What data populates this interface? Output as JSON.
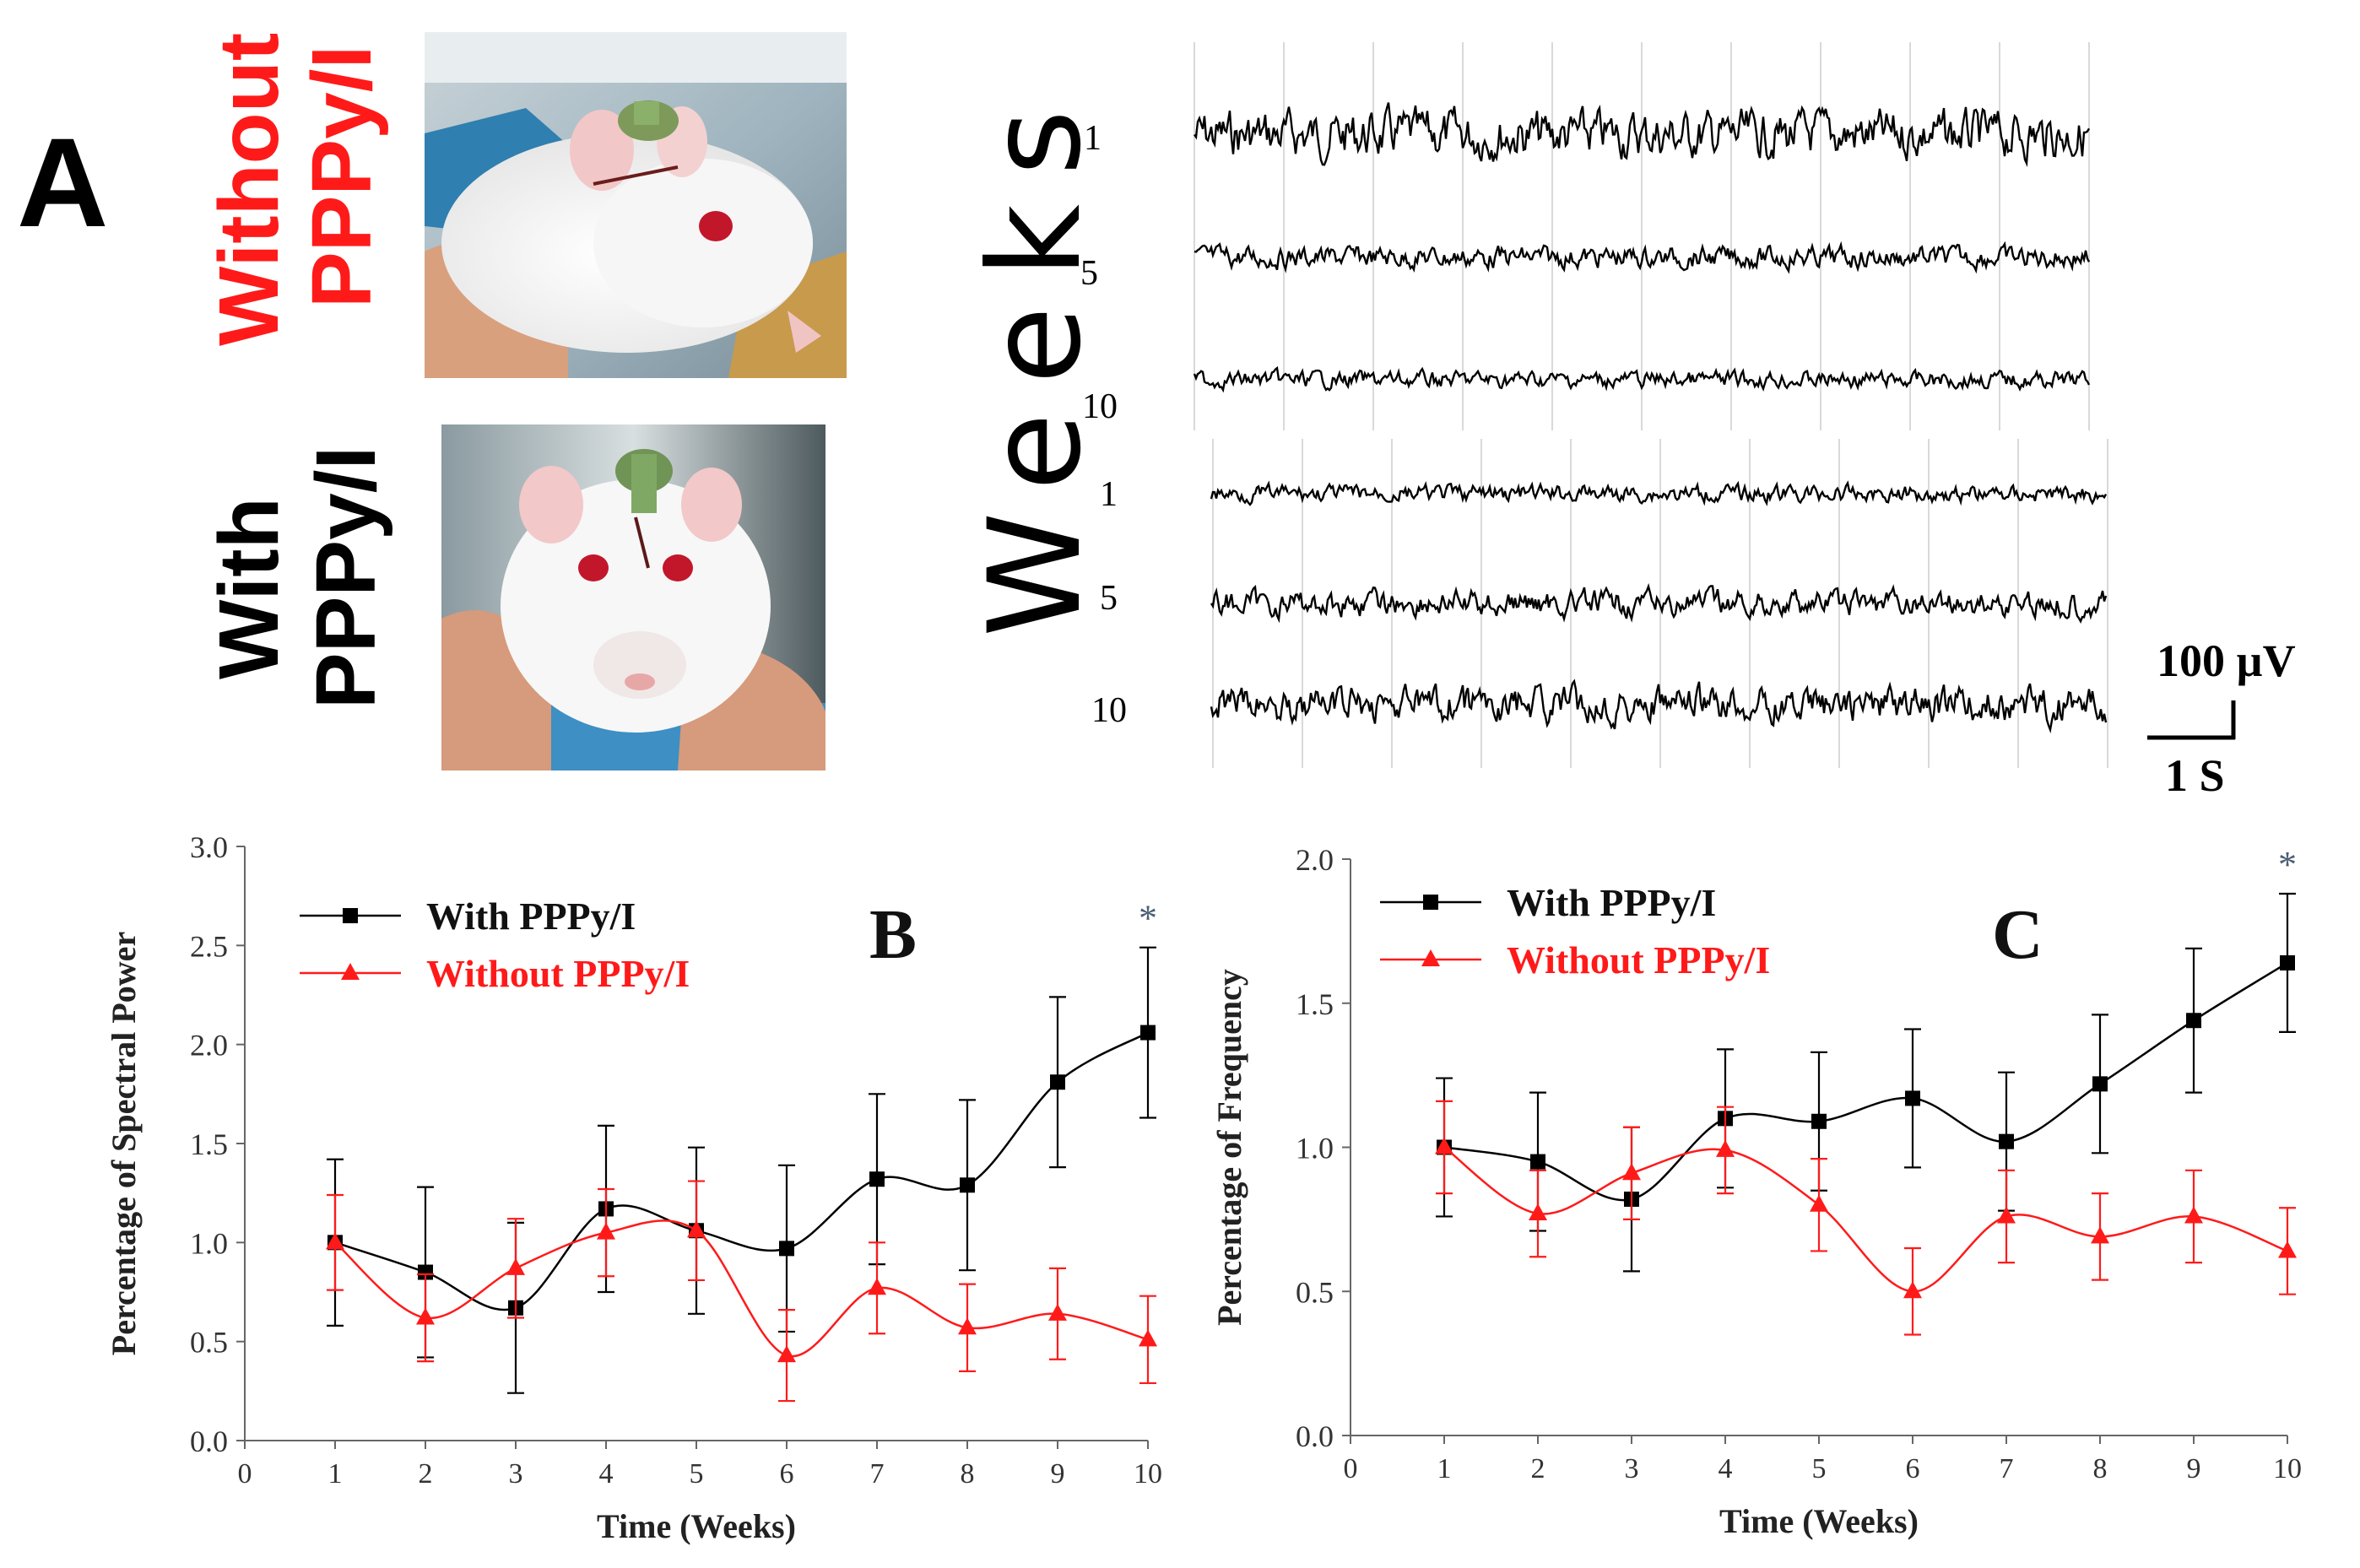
{
  "panel_a": {
    "letter": "A",
    "without_label_line1": "Without",
    "without_label_line2": "PPPy/I",
    "with_label_line1": "With",
    "with_label_line2": "PPPy/I",
    "weeks_label": "Weeks",
    "trace_groups": [
      {
        "name": "without",
        "weeks": [
          "1",
          "5",
          "10"
        ],
        "amplitudes": [
          1.0,
          0.45,
          0.35
        ]
      },
      {
        "name": "with",
        "weeks": [
          "1",
          "5",
          "10"
        ],
        "amplitudes": [
          0.35,
          0.55,
          0.75
        ]
      }
    ],
    "scale_bar": {
      "amplitude": "100 µV",
      "time": "1 S"
    }
  },
  "chart_data": [
    {
      "type": "line",
      "panel_letter": "B",
      "xlabel": "Time (Weeks)",
      "ylabel": "Percentage of Spectral Power",
      "xlim": [
        0,
        10
      ],
      "ylim": [
        0.0,
        3.0
      ],
      "xticks": [
        "0",
        "1",
        "2",
        "3",
        "4",
        "5",
        "6",
        "7",
        "8",
        "9",
        "10"
      ],
      "yticks": [
        "0.0",
        "0.5",
        "1.0",
        "1.5",
        "2.0",
        "2.5",
        "3.0"
      ],
      "annotation": "*",
      "legend_placement": "top-left",
      "series": [
        {
          "name": "With PPPy/I",
          "color": "#000000",
          "marker": "square",
          "x": [
            1,
            2,
            3,
            4,
            5,
            6,
            7,
            8,
            9,
            10
          ],
          "values": [
            1.0,
            0.85,
            0.67,
            1.17,
            1.06,
            0.97,
            1.32,
            1.29,
            1.81,
            2.06
          ],
          "errors": [
            0.42,
            0.43,
            0.43,
            0.42,
            0.42,
            0.42,
            0.43,
            0.43,
            0.43,
            0.43
          ]
        },
        {
          "name": "Without PPPy/I",
          "color": "#ff1a1a",
          "marker": "triangle",
          "x": [
            1,
            2,
            3,
            4,
            5,
            6,
            7,
            8,
            9,
            10
          ],
          "values": [
            1.0,
            0.62,
            0.87,
            1.05,
            1.06,
            0.43,
            0.77,
            0.57,
            0.64,
            0.51
          ],
          "errors": [
            0.24,
            0.22,
            0.25,
            0.22,
            0.25,
            0.23,
            0.23,
            0.22,
            0.23,
            0.22
          ]
        }
      ]
    },
    {
      "type": "line",
      "panel_letter": "C",
      "xlabel": "Time (Weeks)",
      "ylabel": "Percentage of Frequency",
      "xlim": [
        0,
        10
      ],
      "ylim": [
        0.0,
        2.0
      ],
      "xticks": [
        "0",
        "1",
        "2",
        "3",
        "4",
        "5",
        "6",
        "7",
        "8",
        "9",
        "10"
      ],
      "yticks": [
        "0.0",
        "0.5",
        "1.0",
        "1.5",
        "2.0"
      ],
      "annotation": "*",
      "legend_placement": "top-left",
      "series": [
        {
          "name": "With PPPy/I",
          "color": "#000000",
          "marker": "square",
          "x": [
            1,
            2,
            3,
            4,
            5,
            6,
            7,
            8,
            9,
            10
          ],
          "values": [
            1.0,
            0.95,
            0.82,
            1.1,
            1.09,
            1.17,
            1.02,
            1.22,
            1.44,
            1.64
          ],
          "errors": [
            0.24,
            0.24,
            0.25,
            0.24,
            0.24,
            0.24,
            0.24,
            0.24,
            0.25,
            0.24
          ]
        },
        {
          "name": "Without PPPy/I",
          "color": "#ff1a1a",
          "marker": "triangle",
          "x": [
            1,
            2,
            3,
            4,
            5,
            6,
            7,
            8,
            9,
            10
          ],
          "values": [
            1.0,
            0.77,
            0.91,
            0.99,
            0.8,
            0.5,
            0.76,
            0.69,
            0.76,
            0.64
          ],
          "errors": [
            0.16,
            0.15,
            0.16,
            0.15,
            0.16,
            0.15,
            0.16,
            0.15,
            0.16,
            0.15
          ]
        }
      ]
    }
  ]
}
